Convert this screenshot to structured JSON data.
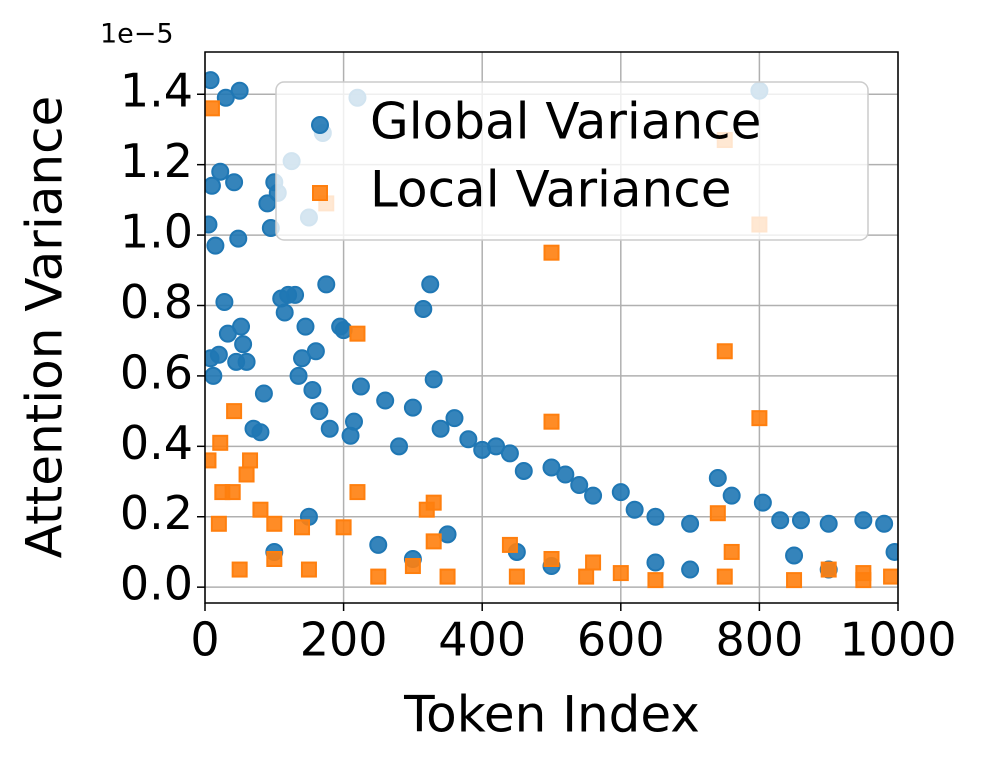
{
  "chart_data": {
    "type": "scatter",
    "xlabel": "Token Index",
    "ylabel": "Attention Variance",
    "y_offset_label": "1e−5",
    "xlim": [
      0,
      1000
    ],
    "ylim": [
      -0.045,
      1.52
    ],
    "xticks": [
      0,
      200,
      400,
      600,
      800,
      1000
    ],
    "yticks": [
      {
        "value": 0,
        "label": "0.0"
      },
      0.2,
      0.4,
      0.6,
      0.8,
      {
        "value": 1,
        "label": "1.0"
      },
      1.2,
      1.4
    ],
    "grid": true,
    "legend": "upper right",
    "series": [
      {
        "name": "Global Variance",
        "color": "#1f77b4",
        "marker": "circle",
        "x": [
          5,
          8,
          10,
          15,
          12,
          8,
          20,
          22,
          28,
          30,
          33,
          42,
          45,
          48,
          50,
          52,
          55,
          60,
          70,
          80,
          85,
          90,
          95,
          100,
          105,
          110,
          115,
          120,
          125,
          130,
          135,
          140,
          145,
          150,
          155,
          160,
          165,
          170,
          175,
          180,
          195,
          200,
          210,
          215,
          220,
          225,
          260,
          280,
          300,
          315,
          325,
          330,
          340,
          360,
          380,
          400,
          420,
          440,
          460,
          500,
          520,
          540,
          560,
          600,
          620,
          650,
          700,
          740,
          760,
          800,
          805,
          830,
          860,
          900,
          950,
          980,
          995,
          100,
          300,
          500,
          700,
          900,
          250,
          450,
          650,
          850,
          150,
          350
        ],
        "values": [
          1.03,
          1.44,
          1.14,
          0.97,
          0.6,
          0.65,
          0.66,
          1.18,
          0.81,
          1.39,
          0.72,
          1.15,
          0.64,
          0.99,
          1.41,
          0.74,
          0.69,
          0.64,
          0.45,
          0.44,
          0.55,
          1.09,
          1.02,
          1.15,
          1.12,
          0.82,
          0.78,
          0.83,
          1.21,
          0.83,
          0.6,
          0.65,
          0.74,
          1.05,
          0.56,
          0.67,
          0.5,
          1.29,
          0.86,
          0.45,
          0.74,
          0.73,
          0.43,
          0.47,
          1.39,
          0.57,
          0.53,
          0.4,
          0.51,
          0.79,
          0.86,
          0.59,
          0.45,
          0.48,
          0.42,
          0.39,
          0.4,
          0.38,
          0.33,
          0.34,
          0.32,
          0.29,
          0.26,
          0.27,
          0.22,
          0.2,
          0.18,
          0.31,
          0.26,
          1.41,
          0.24,
          0.19,
          0.19,
          0.18,
          0.19,
          0.18,
          0.1,
          0.1,
          0.08,
          0.06,
          0.05,
          0.05,
          0.12,
          0.1,
          0.07,
          0.09,
          0.2,
          0.15
        ]
      },
      {
        "name": "Local Variance",
        "color": "#ff7f0e",
        "marker": "square",
        "x": [
          5,
          10,
          20,
          22,
          25,
          40,
          42,
          60,
          65,
          80,
          100,
          140,
          175,
          200,
          220,
          220,
          320,
          330,
          330,
          440,
          500,
          500,
          500,
          560,
          740,
          750,
          750,
          800,
          800,
          760,
          900,
          950,
          50,
          150,
          250,
          350,
          450,
          550,
          650,
          750,
          850,
          950,
          100,
          300,
          600,
          990
        ],
        "values": [
          0.36,
          1.36,
          0.18,
          0.41,
          0.27,
          0.27,
          0.5,
          0.32,
          0.36,
          0.22,
          0.18,
          0.17,
          1.09,
          0.17,
          0.72,
          0.27,
          0.22,
          0.24,
          0.13,
          0.12,
          0.95,
          0.47,
          0.08,
          0.07,
          0.21,
          0.67,
          1.27,
          0.48,
          1.03,
          0.1,
          0.05,
          0.04,
          0.05,
          0.05,
          0.03,
          0.03,
          0.03,
          0.03,
          0.02,
          0.03,
          0.02,
          0.02,
          0.08,
          0.06,
          0.04,
          0.03
        ]
      }
    ]
  }
}
